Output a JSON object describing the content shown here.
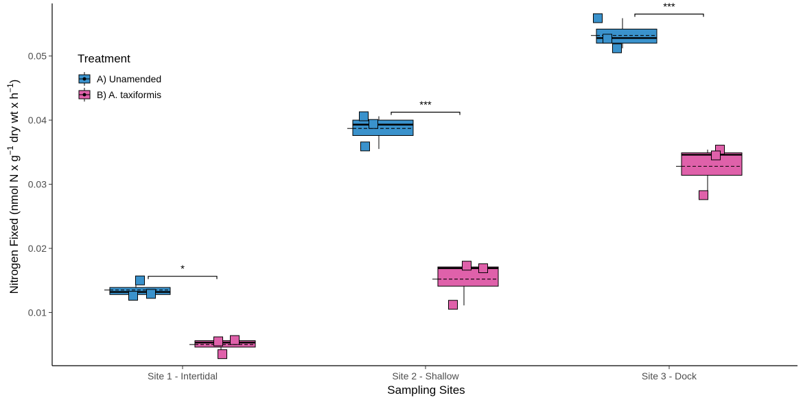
{
  "chart_data": {
    "type": "boxplot",
    "xlabel": "Sampling Sites",
    "ylabel_main": "Nitrogen Fixed (nmol N x g",
    "ylabel_sup1": "−1",
    "ylabel_mid": " dry wt x h",
    "ylabel_sup2": "−1",
    "ylabel_end": ")",
    "ylim": [
      0.0017,
      0.0582
    ],
    "yticks": [
      "0.01",
      "0.02",
      "0.03",
      "0.04",
      "0.05"
    ],
    "categories": [
      "Site 1 - Intertidal",
      "Site 2 - Shallow",
      "Site 3 - Dock"
    ],
    "legend": {
      "title": "Treatment",
      "position": "top-left",
      "items": [
        "A) Unamended",
        "B) A. taxiformis"
      ]
    },
    "colors": {
      "unamended": "#3a92cc",
      "taxiformis": "#df61aa"
    },
    "series": [
      {
        "name": "A) Unamended",
        "boxes": [
          {
            "q1": 0.0128,
            "median": 0.0132,
            "q3": 0.0139,
            "mean": 0.0135,
            "wlo": 0.0126,
            "whi": 0.015,
            "points": [
              0.015,
              0.0129,
              0.0126
            ]
          },
          {
            "q1": 0.0376,
            "median": 0.0393,
            "q3": 0.04,
            "mean": 0.0387,
            "wlo": 0.0355,
            "whi": 0.0406,
            "points": [
              0.0406,
              0.0394,
              0.0359
            ]
          },
          {
            "q1": 0.052,
            "median": 0.0528,
            "q3": 0.0542,
            "mean": 0.0532,
            "wlo": 0.0512,
            "whi": 0.0559,
            "points": [
              0.0559,
              0.0527,
              0.0512
            ]
          }
        ]
      },
      {
        "name": "B) A. taxiformis",
        "boxes": [
          {
            "q1": 0.0046,
            "median": 0.0053,
            "q3": 0.0056,
            "mean": 0.005,
            "wlo": 0.0034,
            "whi": 0.0057,
            "points": [
              0.0055,
              0.0057,
              0.0035
            ]
          },
          {
            "q1": 0.0141,
            "median": 0.0169,
            "q3": 0.0171,
            "mean": 0.0152,
            "wlo": 0.0111,
            "whi": 0.0173,
            "points": [
              0.0173,
              0.0169,
              0.0112
            ]
          },
          {
            "q1": 0.0314,
            "median": 0.0346,
            "q3": 0.0349,
            "mean": 0.0328,
            "wlo": 0.0283,
            "whi": 0.0354,
            "points": [
              0.0354,
              0.0345,
              0.0283
            ]
          }
        ]
      }
    ],
    "significance": [
      "*",
      "***",
      "***"
    ]
  }
}
